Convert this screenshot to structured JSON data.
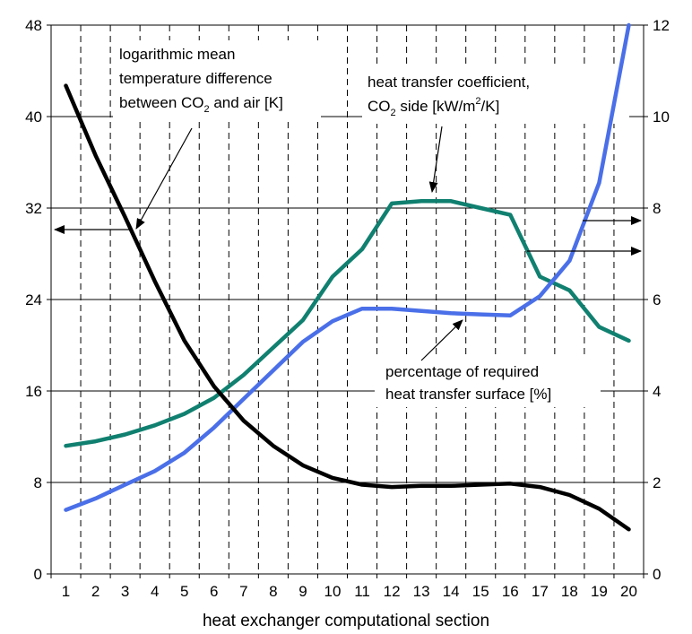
{
  "chart_data": {
    "type": "line",
    "xlabel": "heat exchanger computational section",
    "x": [
      1,
      2,
      3,
      4,
      5,
      6,
      7,
      8,
      9,
      10,
      11,
      12,
      13,
      14,
      15,
      16,
      17,
      18,
      19,
      20
    ],
    "y_left": {
      "ylim": [
        0,
        48
      ],
      "ticks": [
        "0",
        "8",
        "16",
        "24",
        "32",
        "40",
        "48"
      ]
    },
    "y_right": {
      "ylim": [
        0,
        12
      ],
      "ticks": [
        "0",
        "2",
        "4",
        "6",
        "8",
        "10",
        "12"
      ]
    },
    "grid": {
      "horizontal": "solid",
      "vertical": "dashed"
    },
    "series": [
      {
        "key": "lmtd",
        "axis": "left",
        "color": "#000000",
        "values": [
          42.7,
          36.6,
          31.2,
          25.6,
          20.4,
          16.4,
          13.4,
          11.2,
          9.5,
          8.4,
          7.8,
          7.6,
          7.7,
          7.7,
          7.8,
          7.9,
          7.6,
          6.9,
          5.7,
          3.9
        ]
      },
      {
        "key": "htc",
        "axis": "right",
        "color": "#108070",
        "values": [
          2.8,
          2.9,
          3.05,
          3.25,
          3.5,
          3.85,
          4.35,
          4.95,
          5.55,
          6.5,
          7.1,
          8.1,
          8.15,
          8.15,
          8.0,
          7.85,
          6.5,
          6.2,
          5.4,
          5.1
        ]
      },
      {
        "key": "surface",
        "axis": "left",
        "color": "#4a6fe8",
        "values": [
          5.6,
          6.6,
          7.8,
          9.0,
          10.6,
          12.8,
          15.3,
          17.8,
          20.3,
          22.1,
          23.2,
          23.2,
          23.0,
          22.8,
          22.7,
          22.6,
          24.3,
          27.4,
          34.2,
          48.0
        ]
      }
    ],
    "annotations": {
      "lmtd_line1": "logarithmic mean",
      "lmtd_line2": "temperature difference",
      "lmtd_line3_a": "between CO",
      "lmtd_line3_sub": "2",
      "lmtd_line3_b": " and air [K]",
      "htc_line1": "heat transfer coefficient,",
      "htc_line2_a": "CO",
      "htc_line2_sub": "2",
      "htc_line2_b": " side [kW/m",
      "htc_line2_sup": "2",
      "htc_line2_c": "/K]",
      "surface_line1": "percentage of required",
      "surface_line2": "heat transfer surface [%]"
    }
  }
}
